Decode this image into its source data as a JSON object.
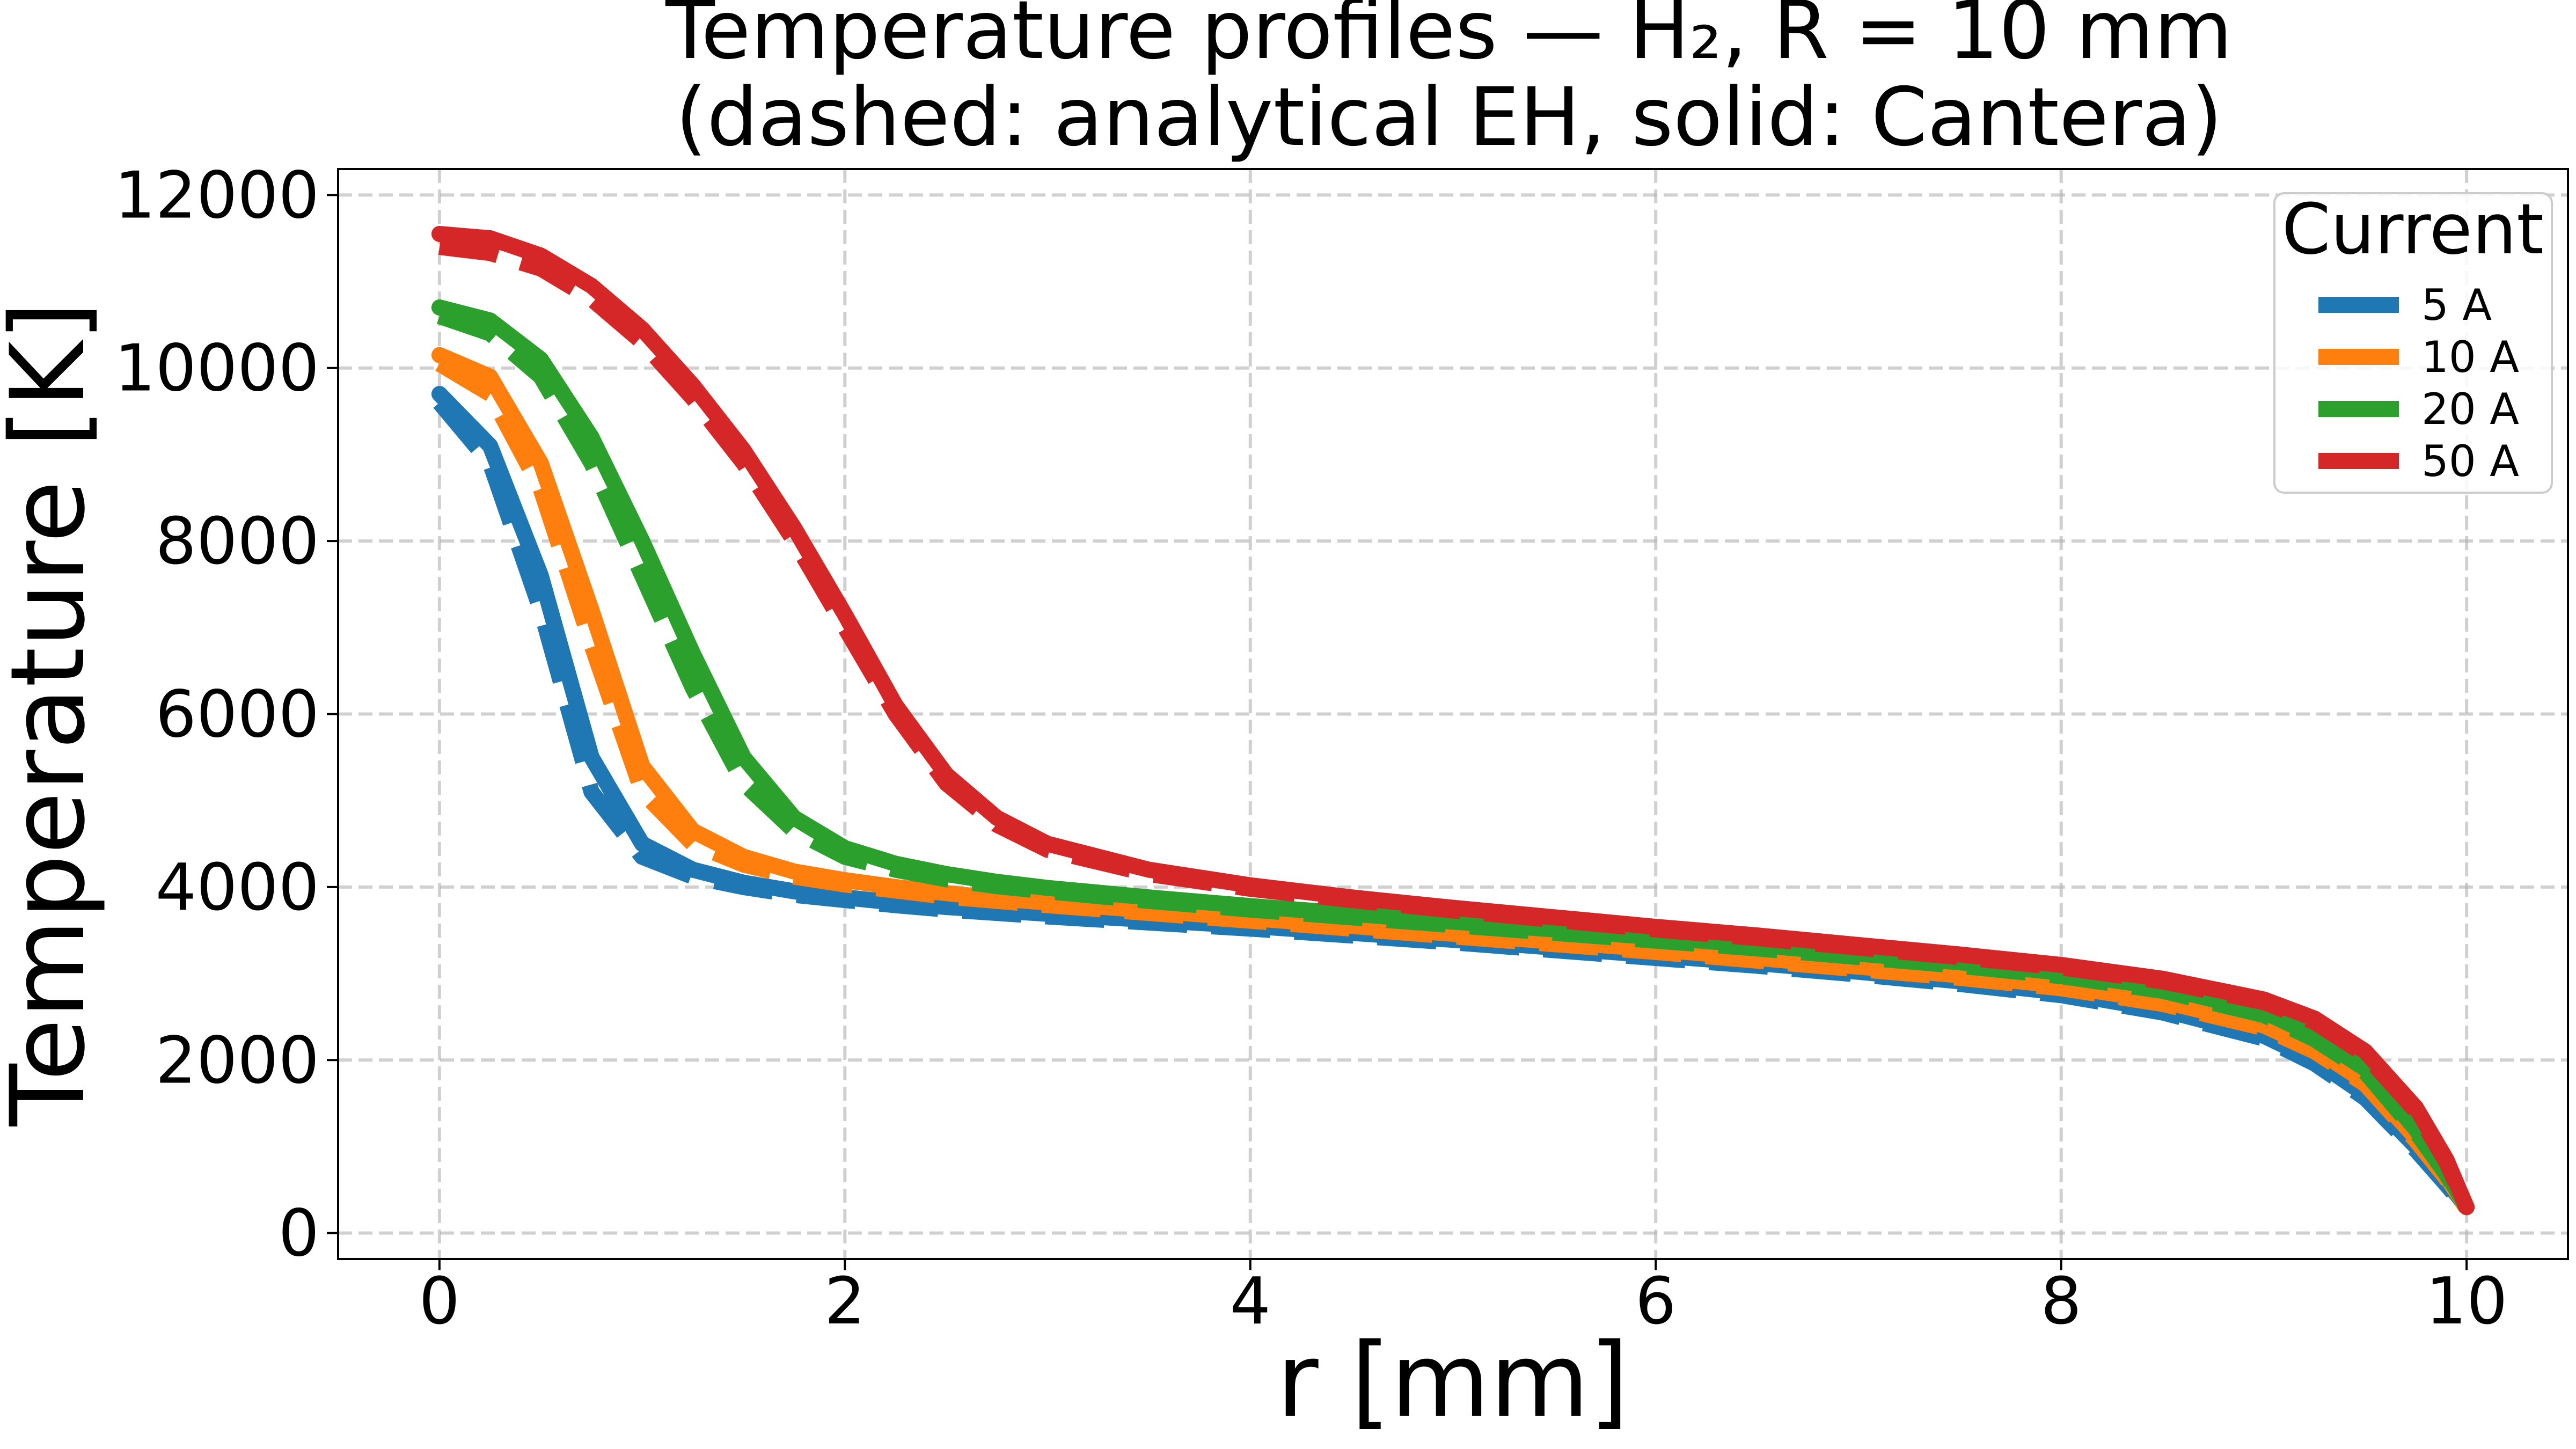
{
  "chart_data": {
    "type": "line",
    "title_line1": "Temperature profiles — H₂, R = 10 mm",
    "title_line2": "(dashed: analytical EH, solid: Cantera)",
    "xlabel": "r [mm]",
    "ylabel": "Temperature [K]",
    "xlim": [
      -0.5,
      10.5
    ],
    "ylim": [
      -300,
      12300
    ],
    "xticks": [
      0,
      2,
      4,
      6,
      8,
      10
    ],
    "yticks": [
      0,
      2000,
      4000,
      6000,
      8000,
      10000,
      12000
    ],
    "xtick_labels": [
      "0",
      "2",
      "4",
      "6",
      "8",
      "10"
    ],
    "ytick_labels": [
      "0",
      "2000",
      "4000",
      "6000",
      "8000",
      "10000",
      "12000"
    ],
    "grid": true,
    "legend": {
      "title": "Current",
      "position": "top-right"
    },
    "x": [
      0,
      0.25,
      0.5,
      0.75,
      1,
      1.25,
      1.5,
      1.75,
      2,
      2.25,
      2.5,
      2.75,
      3,
      3.5,
      4,
      4.5,
      5,
      5.5,
      6,
      6.5,
      7,
      7.5,
      8,
      8.5,
      9,
      9.25,
      9.5,
      9.75,
      9.9,
      10
    ],
    "series": [
      {
        "name": "5 A",
        "color": "#1f77b4",
        "solid": [
          9700,
          9100,
          7600,
          5500,
          4500,
          4200,
          4050,
          3950,
          3880,
          3820,
          3770,
          3730,
          3690,
          3620,
          3550,
          3470,
          3390,
          3300,
          3210,
          3120,
          3020,
          2910,
          2780,
          2580,
          2280,
          2000,
          1600,
          1000,
          600,
          300
        ],
        "dashed": [
          9600,
          8900,
          7200,
          5100,
          4350,
          4120,
          4000,
          3910,
          3850,
          3790,
          3740,
          3700,
          3660,
          3590,
          3520,
          3440,
          3360,
          3270,
          3180,
          3090,
          2990,
          2880,
          2750,
          2550,
          2250,
          1960,
          1560,
          960,
          560,
          280
        ]
      },
      {
        "name": "10 A",
        "color": "#ff7f0e",
        "solid": [
          10150,
          9900,
          8900,
          7200,
          5400,
          4650,
          4350,
          4180,
          4080,
          4000,
          3930,
          3870,
          3820,
          3730,
          3640,
          3550,
          3460,
          3370,
          3280,
          3180,
          3080,
          2980,
          2860,
          2680,
          2400,
          2130,
          1750,
          1100,
          650,
          300
        ],
        "dashed": [
          10050,
          9700,
          8600,
          6800,
          5100,
          4500,
          4260,
          4120,
          4030,
          3960,
          3890,
          3840,
          3790,
          3700,
          3610,
          3520,
          3430,
          3340,
          3250,
          3150,
          3050,
          2950,
          2830,
          2650,
          2370,
          2100,
          1720,
          1070,
          630,
          290
        ]
      },
      {
        "name": "20 A",
        "color": "#2ca02c",
        "solid": [
          10700,
          10550,
          10100,
          9200,
          8000,
          6700,
          5500,
          4800,
          4450,
          4270,
          4150,
          4060,
          3990,
          3880,
          3780,
          3690,
          3600,
          3510,
          3420,
          3330,
          3230,
          3130,
          3010,
          2840,
          2560,
          2280,
          1900,
          1200,
          700,
          300
        ],
        "dashed": [
          10600,
          10400,
          9900,
          8900,
          7600,
          6300,
          5200,
          4650,
          4350,
          4200,
          4090,
          4010,
          3950,
          3840,
          3740,
          3650,
          3560,
          3470,
          3380,
          3290,
          3190,
          3090,
          2970,
          2800,
          2520,
          2240,
          1860,
          1170,
          680,
          290
        ]
      },
      {
        "name": "50 A",
        "color": "#d62728",
        "solid": [
          11550,
          11500,
          11300,
          10950,
          10450,
          9800,
          9050,
          8150,
          7150,
          6100,
          5300,
          4800,
          4500,
          4200,
          4020,
          3880,
          3760,
          3650,
          3540,
          3440,
          3330,
          3220,
          3100,
          2940,
          2700,
          2480,
          2100,
          1450,
          850,
          300
        ],
        "dashed": [
          11400,
          11330,
          11150,
          10800,
          10300,
          9650,
          8900,
          8000,
          7000,
          6000,
          5200,
          4720,
          4430,
          4150,
          3980,
          3850,
          3730,
          3620,
          3510,
          3410,
          3300,
          3190,
          3070,
          2910,
          2670,
          2440,
          2060,
          1410,
          820,
          290
        ]
      }
    ]
  }
}
